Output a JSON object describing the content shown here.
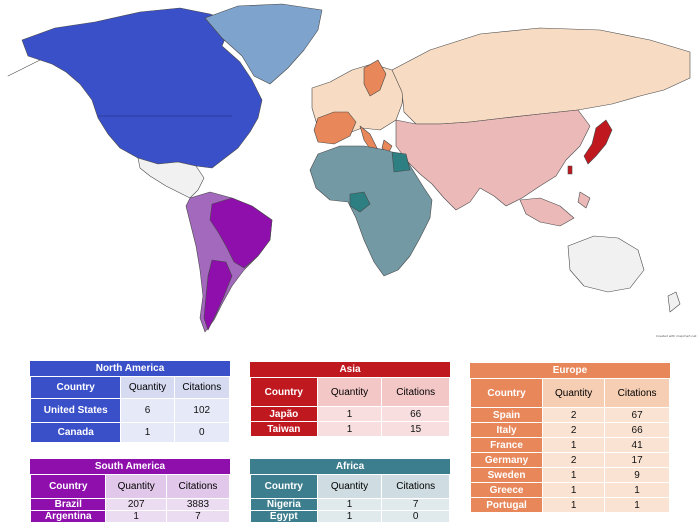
{
  "map": {
    "credit": "Created with mapchart.net",
    "colors": {
      "north_america": "#3a50c9",
      "greenland": "#7ea3cc",
      "mexico": "#f1f1f1",
      "south_america": "#8e0fab",
      "south_america_light": "#a269bd",
      "europe_dark": "#e8875a",
      "russia": "#f7dbc3",
      "asia": "#ecb9b9",
      "japan": "#c0181f",
      "africa": "#7399a5",
      "nigeria_egypt": "#2d7f82",
      "oceania": "#f1f1f1",
      "ocean": "#ffffff",
      "border": "#4a4a4a"
    }
  },
  "tables": {
    "north_america": {
      "title": "North America",
      "headers": [
        "Country",
        "Quantity",
        "Citations"
      ],
      "rows": [
        {
          "country": "United States",
          "quantity": "6",
          "citations": "102"
        },
        {
          "country": "Canada",
          "quantity": "1",
          "citations": "0"
        }
      ],
      "colors": {
        "title": "#3a50c9",
        "country": "#3a50c9",
        "header": "#d6dbf2",
        "row": "#e6e9f8"
      }
    },
    "asia": {
      "title": "Asia",
      "headers": [
        "Country",
        "Quantity",
        "Citations"
      ],
      "rows": [
        {
          "country": "Japão",
          "quantity": "1",
          "citations": "66"
        },
        {
          "country": "Taiwan",
          "quantity": "1",
          "citations": "15"
        }
      ],
      "colors": {
        "title": "#c0181f",
        "country": "#c0181f",
        "header": "#f4c7c7",
        "row": "#f8dede"
      }
    },
    "europe": {
      "title": "Europe",
      "headers": [
        "Country",
        "Quantity",
        "Citations"
      ],
      "rows": [
        {
          "country": "Spain",
          "quantity": "2",
          "citations": "67"
        },
        {
          "country": "Italy",
          "quantity": "2",
          "citations": "66"
        },
        {
          "country": "France",
          "quantity": "1",
          "citations": "41"
        },
        {
          "country": "Germany",
          "quantity": "2",
          "citations": "17"
        },
        {
          "country": "Sweden",
          "quantity": "1",
          "citations": "9"
        },
        {
          "country": "Greece",
          "quantity": "1",
          "citations": "1"
        },
        {
          "country": "Portugal",
          "quantity": "1",
          "citations": "1"
        }
      ],
      "colors": {
        "title": "#e8875a",
        "country": "#e8875a",
        "header": "#f6ceb3",
        "row": "#fae3d3"
      }
    },
    "south_america": {
      "title": "South America",
      "headers": [
        "Country",
        "Quantity",
        "Citations"
      ],
      "rows": [
        {
          "country": "Brazil",
          "quantity": "207",
          "citations": "3883"
        },
        {
          "country": "Argentina",
          "quantity": "1",
          "citations": "7"
        }
      ],
      "colors": {
        "title": "#8e0fab",
        "country": "#8e0fab",
        "header": "#e1c8ea",
        "row": "#ecdcf1"
      }
    },
    "africa": {
      "title": "Africa",
      "headers": [
        "Country",
        "Quantity",
        "Citations"
      ],
      "rows": [
        {
          "country": "Nigeria",
          "quantity": "1",
          "citations": "7"
        },
        {
          "country": "Egypt",
          "quantity": "1",
          "citations": "0"
        }
      ],
      "colors": {
        "title": "#3d7e8e",
        "country": "#3d7e8e",
        "header": "#cfdde2",
        "row": "#e0e9ec"
      }
    }
  }
}
